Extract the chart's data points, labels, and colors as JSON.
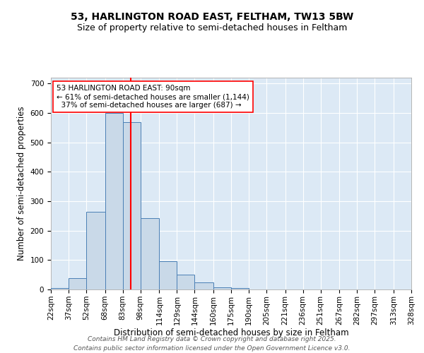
{
  "title_line1": "53, HARLINGTON ROAD EAST, FELTHAM, TW13 5BW",
  "title_line2": "Size of property relative to semi-detached houses in Feltham",
  "xlabel": "Distribution of semi-detached houses by size in Feltham",
  "ylabel": "Number of semi-detached properties",
  "bin_labels": [
    "22sqm",
    "37sqm",
    "52sqm",
    "68sqm",
    "83sqm",
    "98sqm",
    "114sqm",
    "129sqm",
    "144sqm",
    "160sqm",
    "175sqm",
    "190sqm",
    "205sqm",
    "221sqm",
    "236sqm",
    "251sqm",
    "267sqm",
    "282sqm",
    "297sqm",
    "313sqm",
    "328sqm"
  ],
  "bin_edges": [
    22,
    37,
    52,
    68,
    83,
    98,
    114,
    129,
    144,
    160,
    175,
    190,
    205,
    221,
    236,
    251,
    267,
    282,
    297,
    313,
    328
  ],
  "bar_heights": [
    5,
    38,
    265,
    600,
    570,
    243,
    97,
    50,
    25,
    7,
    5,
    1,
    0,
    0,
    0,
    0,
    0,
    0,
    0,
    0
  ],
  "bar_color": "#c9d9e8",
  "bar_edge_color": "#4a7fb5",
  "property_size": 90,
  "vline_x": 90,
  "vline_color": "red",
  "annotation_line1": "53 HARLINGTON ROAD EAST: 90sqm",
  "annotation_line2": "← 61% of semi-detached houses are smaller (1,144)",
  "annotation_line3": "  37% of semi-detached houses are larger (687) →",
  "annotation_box_color": "white",
  "annotation_box_edge": "red",
  "ylim": [
    0,
    720
  ],
  "yticks": [
    0,
    100,
    200,
    300,
    400,
    500,
    600,
    700
  ],
  "background_color": "#dce9f5",
  "footer_line1": "Contains HM Land Registry data © Crown copyright and database right 2025.",
  "footer_line2": "Contains public sector information licensed under the Open Government Licence v3.0.",
  "title_fontsize": 10,
  "subtitle_fontsize": 9,
  "axis_label_fontsize": 8.5,
  "tick_fontsize": 7.5,
  "annotation_fontsize": 7.5,
  "footer_fontsize": 6.5
}
